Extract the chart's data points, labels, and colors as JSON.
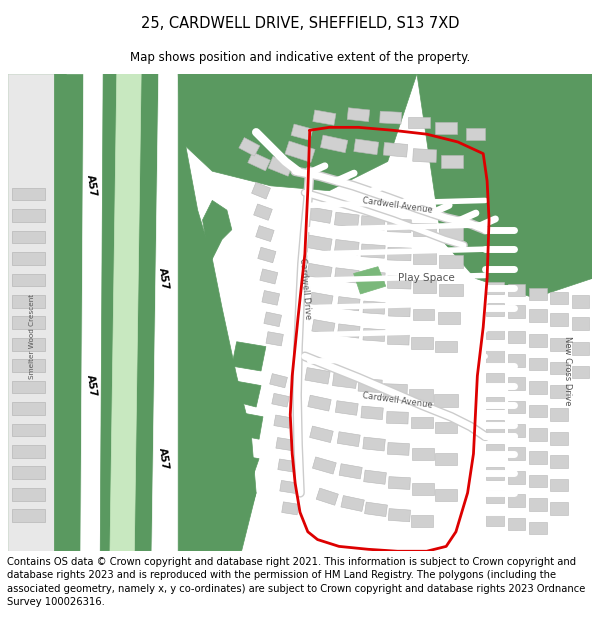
{
  "title": "25, CARDWELL DRIVE, SHEFFIELD, S13 7XD",
  "subtitle": "Map shows position and indicative extent of the property.",
  "footer": "Contains OS data © Crown copyright and database right 2021. This information is subject to Crown copyright and database rights 2023 and is reproduced with the permission of\nHM Land Registry. The polygons (including the associated geometry, namely x, y co-ordinates) are subject to Crown copyright and database rights 2023 Ordnance Survey\n100026316.",
  "green_bg": "#5a9960",
  "white": "#ffffff",
  "light_grey": "#e8e8e8",
  "building_fill": "#d0d0d0",
  "building_edge": "#b8b8b8",
  "road_white": "#ffffff",
  "a57_green_inner": "#c8e8c0",
  "play_green": "#7ab87a",
  "red_line": "#dd0000",
  "dark_green": "#4a8850",
  "text_dark": "#333333",
  "title_fontsize": 10.5,
  "subtitle_fontsize": 8.5,
  "footer_fontsize": 7.2
}
